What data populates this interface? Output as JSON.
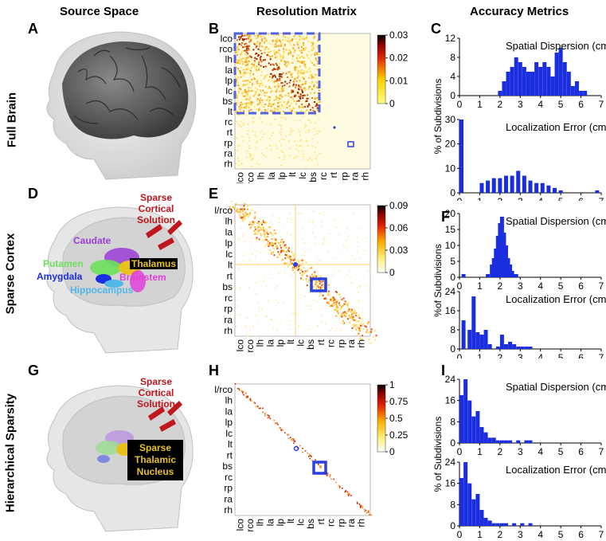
{
  "columns": [
    "Source Space",
    "Resolution Matrix",
    "Accuracy Metrics"
  ],
  "rows": [
    "Full Brain",
    "Sparse Cortex",
    "Hierarchical Sparsity"
  ],
  "panel_letters": [
    "A",
    "B",
    "C",
    "D",
    "E",
    "F",
    "G",
    "H",
    "I"
  ],
  "brain_labels": {
    "sparse_cortical_1": "Sparse Cortical Solution",
    "sparse_cortical_2": "Sparse Cortical Solution",
    "caudate": "Caudate",
    "putamen": "Putamen",
    "thalamus": "Thalamus",
    "amygdala": "Amygdala",
    "brainstem": "Brainstem",
    "hippocampus": "Hippocampus",
    "sparse_thalamic": "Sparse Thalamic Nucleus"
  },
  "matrices": {
    "B": {
      "row_labels": [
        "lco",
        "rco",
        "lh",
        "la",
        "lp",
        "lc",
        "bs",
        "lt",
        "rc",
        "rt",
        "rp",
        "ra",
        "rh"
      ],
      "col_labels": [
        "lco",
        "rco",
        "lh",
        "la",
        "lp",
        "lt",
        "lc",
        "bs",
        "rc",
        "rt",
        "rp",
        "ra",
        "rh"
      ],
      "colorbar_ticks": [
        "0.03",
        "0.02",
        "0.01",
        "0"
      ]
    },
    "E": {
      "row_labels": [
        "l/rco",
        "lh",
        "la",
        "lp",
        "lc",
        "lt",
        "rt",
        "bs",
        "rc",
        "rp",
        "ra",
        "rh"
      ],
      "col_labels": [
        "lco",
        "rco",
        "lh",
        "la",
        "lp",
        "lt",
        "lc",
        "bs",
        "rt",
        "rc",
        "rp",
        "ra",
        "rh"
      ],
      "colorbar_ticks": [
        "0.09",
        "0.06",
        "0.03",
        "0"
      ]
    },
    "H": {
      "row_labels": [
        "l/rco",
        "lh",
        "la",
        "lp",
        "lc",
        "lt",
        "rt",
        "bs",
        "rc",
        "rp",
        "ra",
        "rh"
      ],
      "col_labels": [
        "lco",
        "rco",
        "lh",
        "la",
        "lp",
        "lt",
        "lc",
        "bs",
        "rt",
        "rc",
        "rp",
        "ra",
        "rh"
      ],
      "colorbar_ticks": [
        "1",
        "0.75",
        "0.5",
        "0.25",
        "0"
      ]
    }
  },
  "chart_data": [
    {
      "panel": "C",
      "type": "bar",
      "title": "Spatial Dispersion (cm)",
      "ylim": [
        0,
        12
      ],
      "yticks": [
        "0",
        "4",
        "8",
        "12"
      ],
      "xlim": [
        0,
        7
      ],
      "x": [
        2.0,
        2.2,
        2.4,
        2.6,
        2.8,
        3.0,
        3.2,
        3.4,
        3.6,
        3.8,
        4.0,
        4.2,
        4.4,
        4.6,
        4.8,
        5.0,
        5.2,
        5.4,
        5.6,
        5.8,
        6.0,
        6.2
      ],
      "values": [
        1,
        3,
        5,
        6,
        8,
        7,
        6,
        5,
        5,
        7,
        6,
        7,
        6,
        4,
        9,
        10,
        7,
        5,
        2,
        3,
        1,
        1
      ]
    },
    {
      "panel": "C",
      "type": "bar",
      "title": "Localization Error  (cm)",
      "ylim": [
        0,
        30
      ],
      "yticks": [
        "0",
        "10",
        "20",
        "30"
      ],
      "xlim": [
        0,
        7
      ],
      "x": [
        0.1,
        1.1,
        1.4,
        1.7,
        2.0,
        2.3,
        2.6,
        2.9,
        3.2,
        3.5,
        3.8,
        4.1,
        4.4,
        4.7,
        5.0,
        6.8
      ],
      "values": [
        30,
        4,
        5,
        6,
        6,
        7,
        7,
        9,
        7,
        5,
        4,
        4,
        3,
        2,
        1,
        1
      ]
    },
    {
      "panel": "F",
      "type": "bar",
      "title": "Spatial Dispersion (cm)",
      "ylim": [
        0,
        20
      ],
      "yticks": [
        "0",
        "5",
        "10",
        "15",
        "20"
      ],
      "xlim": [
        0,
        7
      ],
      "x": [
        0.2,
        1.4,
        1.6,
        1.7,
        1.8,
        1.9,
        2.0,
        2.1,
        2.2,
        2.3,
        2.4,
        2.5,
        2.6,
        2.7,
        2.8
      ],
      "values": [
        1,
        1,
        4,
        6,
        9,
        13,
        17,
        19,
        14,
        10,
        6,
        4,
        2,
        1,
        1
      ]
    },
    {
      "panel": "F",
      "type": "bar",
      "title": "Localization Error  (cm)",
      "ylim": [
        0,
        24
      ],
      "yticks": [
        "0",
        "8",
        "16",
        "24"
      ],
      "xlim": [
        0,
        7
      ],
      "x": [
        0.2,
        0.5,
        0.7,
        0.9,
        1.1,
        1.3,
        1.5,
        1.9,
        2.1,
        2.3,
        2.5,
        2.7,
        2.9,
        3.1,
        3.3,
        3.5
      ],
      "values": [
        12,
        8,
        22,
        7,
        6,
        8,
        2,
        1,
        6,
        2,
        3,
        2,
        1,
        1,
        1,
        1
      ]
    },
    {
      "panel": "I",
      "type": "bar",
      "title": "Spatial Dispersion (cm)",
      "ylim": [
        0,
        24
      ],
      "yticks": [
        "0",
        "8",
        "16",
        "24"
      ],
      "xlim": [
        0,
        7
      ],
      "x": [
        0.1,
        0.3,
        0.5,
        0.7,
        0.9,
        1.1,
        1.3,
        1.5,
        1.7,
        1.9,
        2.1,
        2.3,
        2.5,
        2.9,
        3.3,
        3.5
      ],
      "values": [
        18,
        24,
        16,
        10,
        12,
        6,
        4,
        2,
        2,
        1,
        1,
        1,
        1,
        1,
        1,
        1
      ]
    },
    {
      "panel": "I",
      "type": "bar",
      "title": "Localization Error  (cm)",
      "ylim": [
        0,
        24
      ],
      "yticks": [
        "0",
        "8",
        "16",
        "24"
      ],
      "xlim": [
        0,
        7
      ],
      "x": [
        0.1,
        0.3,
        0.5,
        0.7,
        0.9,
        1.1,
        1.3,
        1.5,
        1.7,
        1.9,
        2.1,
        2.3,
        2.7,
        3.1,
        3.5
      ],
      "values": [
        18,
        24,
        16,
        10,
        12,
        6,
        3,
        2,
        1,
        1,
        1,
        1,
        1,
        1,
        1
      ]
    }
  ],
  "axis": {
    "xticks": [
      "0",
      "1",
      "2",
      "3",
      "4",
      "5",
      "6",
      "7"
    ],
    "ylabel_C": "% of Subdivisions",
    "ylabel_F": "%of Subdivisions",
    "ylabel_I": "% of Subdivisions"
  },
  "colors": {
    "bar": "#1a2ee0",
    "highlight": "#2a3fe0"
  }
}
